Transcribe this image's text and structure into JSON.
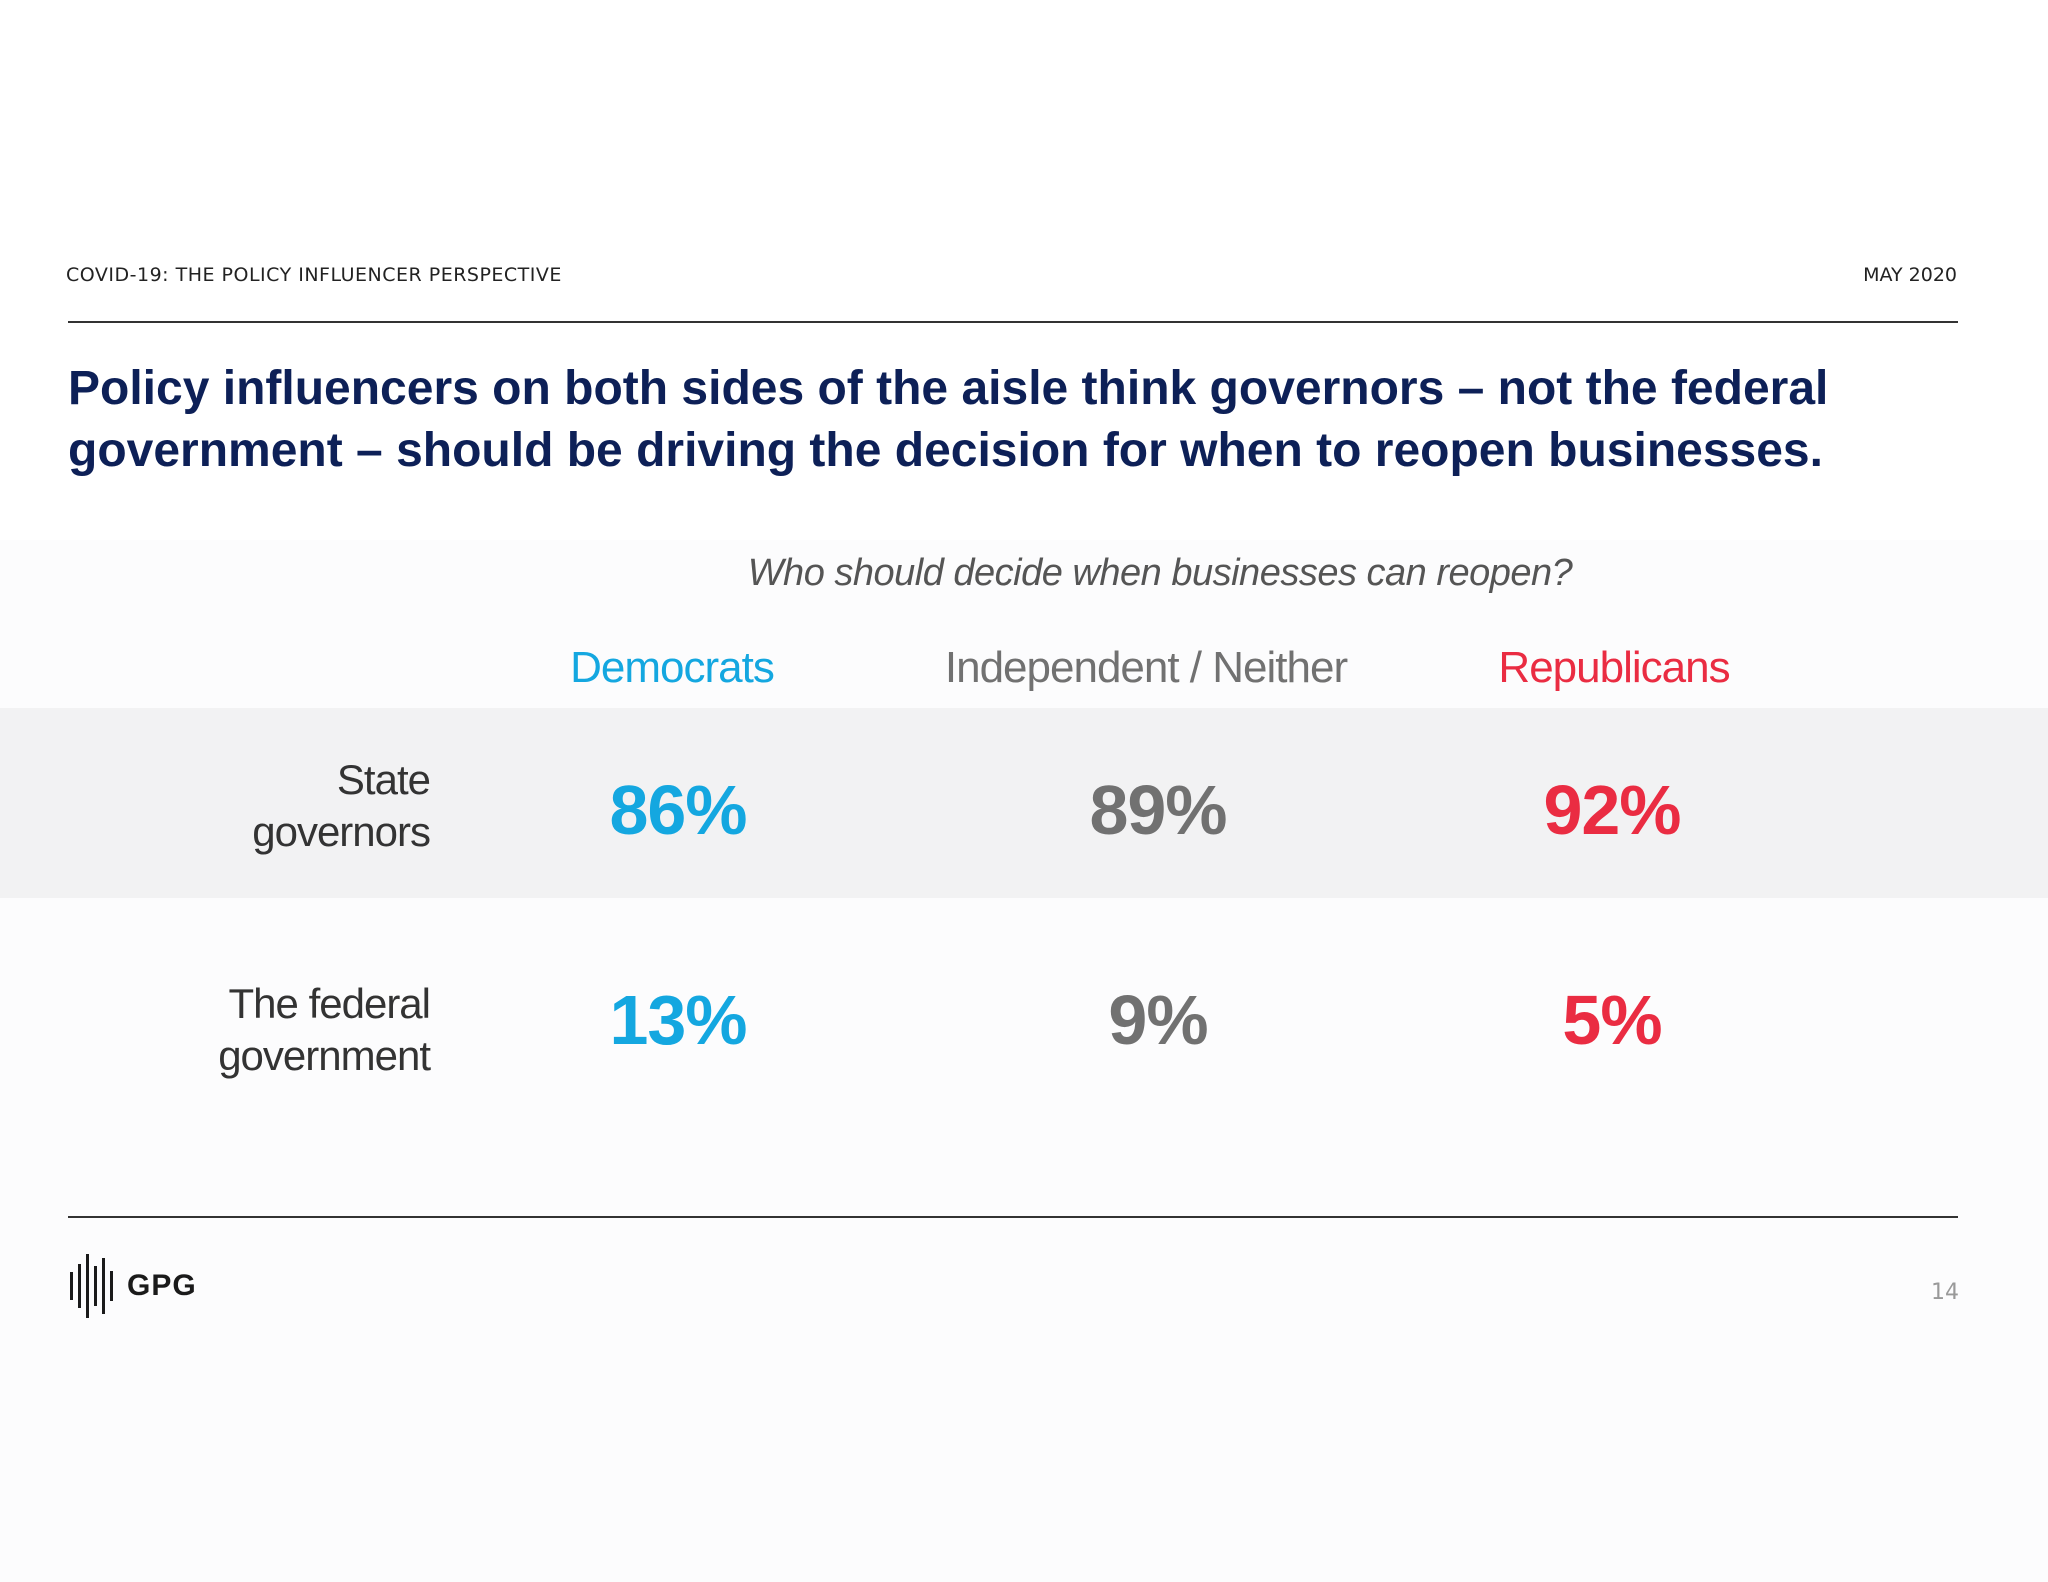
{
  "header": {
    "left": "COVID-19: THE POLICY INFLUENCER PERSPECTIVE",
    "right": "MAY 2020"
  },
  "headline": "Policy influencers on both sides of the aisle think governors – not the federal government – should be driving the decision for when to reopen businesses.",
  "colors": {
    "democrats": "#14a7e0",
    "independent": "#717171",
    "republicans": "#ea2c42",
    "headline": "#0d2057"
  },
  "chart_data": {
    "type": "table",
    "title": "Who should decide when businesses can reopen?",
    "columns": [
      "Democrats",
      "Independent / Neither",
      "Republicans"
    ],
    "rows": [
      {
        "label_line1": "State",
        "label_line2": "governors",
        "values": [
          "86%",
          "89%",
          "92%"
        ]
      },
      {
        "label_line1": "The federal",
        "label_line2": "government",
        "values": [
          "13%",
          "9%",
          "5%"
        ]
      }
    ]
  },
  "footer": {
    "logo_text": "GPG",
    "page_number": "14"
  }
}
